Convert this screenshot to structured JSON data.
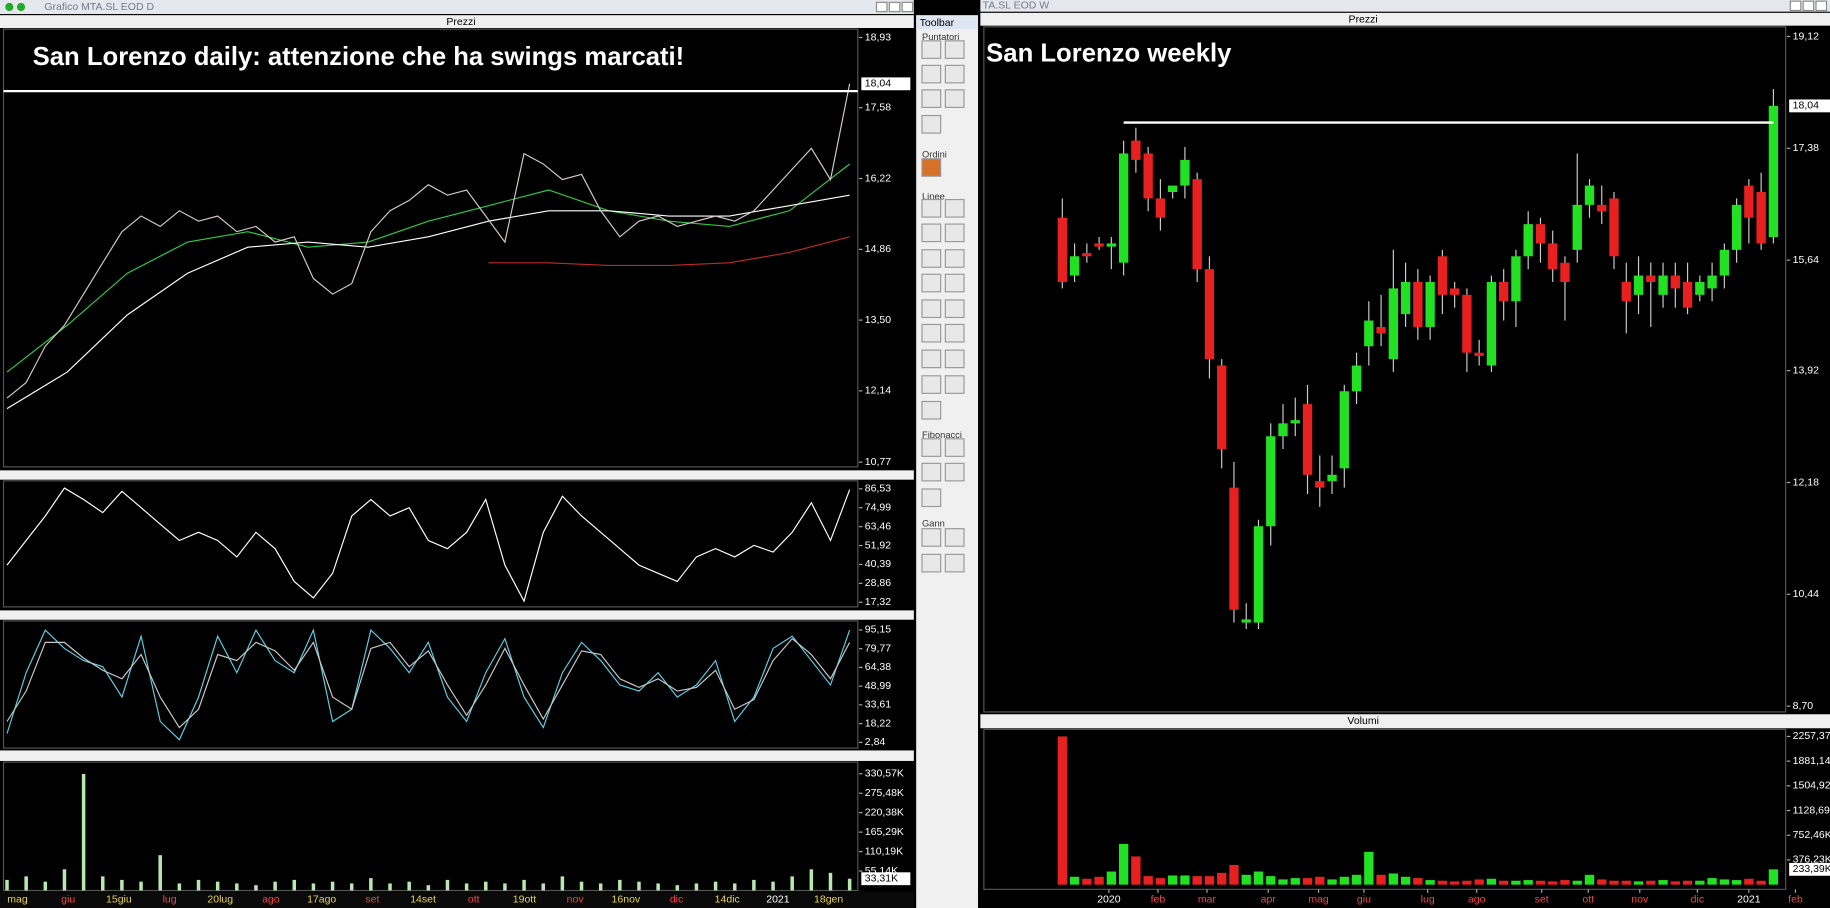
{
  "left_window": {
    "window_title": "Grafico MTA.SL EOD D",
    "panel_title": "Prezzi",
    "annotation": "San Lorenzo daily: attenzione che ha swings marcati!",
    "x_labels": [
      "mag",
      "giu",
      "15giu",
      "lug",
      "20lug",
      "ago",
      "17ago",
      "set",
      "14set",
      "ott",
      "19ott",
      "nov",
      "16nov",
      "dic",
      "14dic",
      "2021",
      "18gen"
    ],
    "x_label_colors": [
      "#e8d44d",
      "#ff4040",
      "#e8d44d",
      "#ff4040",
      "#e8d44d",
      "#ff4040",
      "#e8d44d",
      "#ff4040",
      "#e8d44d",
      "#ff4040",
      "#e8d44d",
      "#ff4040",
      "#e8d44d",
      "#ff4040",
      "#e8d44d",
      "#ffffff",
      "#e8d44d"
    ],
    "price": {
      "ylim": [
        10.68,
        19.09
      ],
      "yticks": [
        {
          "value": 18.93,
          "label": "18,93"
        },
        {
          "value": 17.58,
          "label": "17,58"
        },
        {
          "value": 16.22,
          "label": "16,22"
        },
        {
          "value": 14.86,
          "label": "14,86"
        },
        {
          "value": 13.5,
          "label": "13,50"
        },
        {
          "value": 12.14,
          "label": "12,14"
        },
        {
          "value": 10.77,
          "label": "10,77"
        }
      ],
      "current": {
        "value": 18.04,
        "label": "18,04"
      },
      "hline": 17.9,
      "close_color": "#d8c8c8",
      "closes": [
        12.0,
        12.3,
        13.0,
        13.4,
        14.0,
        14.6,
        15.2,
        15.5,
        15.3,
        15.6,
        15.4,
        15.5,
        15.2,
        15.3,
        15.0,
        15.1,
        14.3,
        14.0,
        14.2,
        15.2,
        15.6,
        15.8,
        16.1,
        15.9,
        16.0,
        15.5,
        15.0,
        16.7,
        16.5,
        16.2,
        16.3,
        15.6,
        15.1,
        15.4,
        15.5,
        15.3,
        15.4,
        15.5,
        15.4,
        15.6,
        16.0,
        16.4,
        16.8,
        16.2,
        18.04
      ],
      "averages": [
        {
          "color": "#2ecc40",
          "values": [
            12.5,
            13.4,
            14.4,
            15.0,
            15.2,
            14.9,
            15.0,
            15.4,
            15.7,
            16.0,
            15.6,
            15.4,
            15.3,
            15.6,
            16.5
          ]
        },
        {
          "color": "#ffffff",
          "values": [
            11.8,
            12.5,
            13.6,
            14.4,
            14.9,
            15.0,
            14.9,
            15.1,
            15.4,
            15.6,
            15.6,
            15.5,
            15.5,
            15.7,
            15.9
          ]
        },
        {
          "color": "#c0282a",
          "values": [
            null,
            null,
            null,
            null,
            null,
            null,
            null,
            null,
            14.6,
            14.6,
            14.55,
            14.55,
            14.6,
            14.8,
            15.1
          ]
        }
      ]
    },
    "rsi": {
      "ylim": [
        14.5,
        91.4
      ],
      "yticks": [
        {
          "value": 86.53,
          "label": "86,53"
        },
        {
          "value": 74.99,
          "label": "74,99"
        },
        {
          "value": 63.46,
          "label": "63,46"
        },
        {
          "value": 51.92,
          "label": "51,92"
        },
        {
          "value": 40.39,
          "label": "40,39"
        },
        {
          "value": 28.86,
          "label": "28,86"
        },
        {
          "value": 17.32,
          "label": "17,32"
        }
      ],
      "color": "#ffffff",
      "values": [
        40,
        55,
        70,
        87,
        80,
        72,
        85,
        75,
        65,
        55,
        60,
        55,
        45,
        60,
        50,
        30,
        20,
        35,
        70,
        80,
        70,
        75,
        55,
        50,
        60,
        80,
        40,
        18,
        60,
        82,
        70,
        60,
        50,
        40,
        35,
        30,
        45,
        50,
        45,
        52,
        48,
        60,
        78,
        55,
        86
      ]
    },
    "stochastic": {
      "ylim": [
        -1.9,
        102.6
      ],
      "yticks": [
        {
          "value": 95.15,
          "label": "95,15"
        },
        {
          "value": 79.77,
          "label": "79,77"
        },
        {
          "value": 64.38,
          "label": "64,38"
        },
        {
          "value": 48.99,
          "label": "48,99"
        },
        {
          "value": 33.61,
          "label": "33,61"
        },
        {
          "value": 18.22,
          "label": "18,22"
        },
        {
          "value": 2.84,
          "label": "2,84"
        }
      ],
      "series": [
        {
          "color": "#5ad0e8",
          "values": [
            10,
            60,
            95,
            80,
            70,
            65,
            40,
            90,
            20,
            5,
            40,
            90,
            60,
            95,
            70,
            60,
            95,
            20,
            30,
            95,
            80,
            60,
            85,
            40,
            20,
            60,
            88,
            40,
            15,
            60,
            85,
            70,
            50,
            45,
            60,
            40,
            50,
            70,
            20,
            40,
            80,
            90,
            70,
            50,
            95
          ]
        },
        {
          "color": "#c8c8c8",
          "values": [
            20,
            45,
            85,
            85,
            72,
            62,
            55,
            75,
            40,
            15,
            30,
            75,
            70,
            85,
            78,
            62,
            85,
            40,
            30,
            80,
            85,
            65,
            78,
            50,
            25,
            50,
            80,
            50,
            22,
            50,
            78,
            75,
            55,
            48,
            55,
            45,
            48,
            62,
            30,
            38,
            70,
            88,
            75,
            55,
            85
          ]
        }
      ]
    },
    "volume": {
      "ylim": [
        0,
        363.6
      ],
      "yticks": [
        {
          "value": 330.57,
          "label": "330,57K"
        },
        {
          "value": 275.48,
          "label": "275,48K"
        },
        {
          "value": 220.38,
          "label": "220,38K"
        },
        {
          "value": 165.29,
          "label": "165,29K"
        },
        {
          "value": 110.19,
          "label": "110,19K"
        },
        {
          "value": 55.14,
          "label": "55,14K"
        }
      ],
      "current": {
        "value": 33.31,
        "label": "33,31K"
      },
      "color": "#b8e8b0",
      "values": [
        30,
        40,
        25,
        60,
        330,
        40,
        30,
        25,
        100,
        20,
        30,
        25,
        20,
        15,
        25,
        30,
        20,
        25,
        20,
        35,
        20,
        25,
        15,
        30,
        20,
        25,
        20,
        30,
        20,
        40,
        25,
        20,
        30,
        25,
        20,
        15,
        20,
        25,
        20,
        30,
        25,
        40,
        60,
        50,
        33.31
      ]
    }
  },
  "toolbar": {
    "title": "Toolbar",
    "sections": [
      "Puntatori",
      "Ordini",
      "Linee",
      "Fibonacci",
      "Gann"
    ]
  },
  "right_window": {
    "window_title": "TA.SL EOD W",
    "panel_title": "Prezzi",
    "volume_title": "Volumi",
    "annotation": "San Lorenzo weekly",
    "xlim": [
      -6.4,
      59
    ],
    "xticks": [
      {
        "value": 3.8,
        "label": "2020"
      },
      {
        "value": 7.8,
        "label": "feb"
      },
      {
        "value": 11.8,
        "label": "mar"
      },
      {
        "value": 16.8,
        "label": "apr"
      },
      {
        "value": 20.9,
        "label": "mag"
      },
      {
        "value": 24.6,
        "label": "giu"
      },
      {
        "value": 29.8,
        "label": "lug"
      },
      {
        "value": 33.8,
        "label": "ago"
      },
      {
        "value": 39.1,
        "label": "set"
      },
      {
        "value": 42.9,
        "label": "ott"
      },
      {
        "value": 47.1,
        "label": "nov"
      },
      {
        "value": 51.8,
        "label": "dic"
      },
      {
        "value": 56,
        "label": "2021"
      },
      {
        "value": 59.8,
        "label": "feb"
      }
    ],
    "up_color": "#22e022",
    "down_color": "#e82020",
    "price": {
      "ylim": [
        8.61,
        19.27
      ],
      "yticks": [
        {
          "value": 19.12,
          "label": "19,12"
        },
        {
          "value": 17.38,
          "label": "17,38"
        },
        {
          "value": 15.64,
          "label": "15,64"
        },
        {
          "value": 13.92,
          "label": "13,92"
        },
        {
          "value": 12.18,
          "label": "12,18"
        },
        {
          "value": 10.44,
          "label": "10,44"
        },
        {
          "value": 8.7,
          "label": "8,70"
        }
      ],
      "current": {
        "value": 18.04,
        "label": "18,04"
      },
      "hline": {
        "value": 17.78,
        "from": 5
      },
      "candles": [
        [
          16.3,
          16.6,
          15.2,
          15.3
        ],
        [
          15.4,
          15.9,
          15.3,
          15.7
        ],
        [
          15.75,
          15.9,
          15.6,
          15.7
        ],
        [
          15.9,
          16.0,
          15.8,
          15.85
        ],
        [
          15.85,
          16.0,
          15.5,
          15.9
        ],
        [
          15.6,
          17.5,
          15.4,
          17.3
        ],
        [
          17.5,
          17.7,
          17.0,
          17.2
        ],
        [
          17.3,
          17.4,
          16.4,
          16.6
        ],
        [
          16.6,
          16.9,
          16.1,
          16.3
        ],
        [
          16.7,
          16.8,
          16.6,
          16.8
        ],
        [
          16.8,
          17.4,
          16.6,
          17.2
        ],
        [
          16.9,
          17.0,
          15.3,
          15.5
        ],
        [
          15.5,
          15.7,
          13.8,
          14.1
        ],
        [
          14.0,
          14.1,
          12.4,
          12.7
        ],
        [
          12.1,
          12.5,
          10.0,
          10.2
        ],
        [
          10.0,
          10.3,
          9.9,
          10.05
        ],
        [
          10.0,
          11.6,
          9.9,
          11.5
        ],
        [
          11.5,
          13.1,
          11.2,
          12.9
        ],
        [
          12.9,
          13.4,
          12.7,
          13.1
        ],
        [
          13.1,
          13.5,
          12.9,
          13.15
        ],
        [
          13.4,
          13.7,
          12.0,
          12.3
        ],
        [
          12.2,
          12.6,
          11.8,
          12.1
        ],
        [
          12.2,
          12.6,
          12.0,
          12.3
        ],
        [
          12.4,
          13.7,
          12.1,
          13.6
        ],
        [
          13.6,
          14.2,
          13.4,
          14.0
        ],
        [
          14.3,
          15.0,
          14.0,
          14.7
        ],
        [
          14.6,
          15.1,
          14.3,
          14.5
        ],
        [
          14.1,
          15.8,
          13.9,
          15.2
        ],
        [
          14.8,
          15.6,
          14.6,
          15.3
        ],
        [
          15.3,
          15.5,
          14.4,
          14.6
        ],
        [
          14.6,
          15.4,
          14.4,
          15.3
        ],
        [
          15.7,
          15.8,
          14.8,
          15.1
        ],
        [
          15.2,
          15.3,
          14.9,
          15.1
        ],
        [
          15.1,
          15.2,
          13.9,
          14.2
        ],
        [
          14.2,
          14.4,
          14.0,
          14.15
        ],
        [
          14.0,
          15.4,
          13.9,
          15.3
        ],
        [
          15.3,
          15.5,
          14.7,
          15.0
        ],
        [
          15.0,
          15.8,
          14.6,
          15.7
        ],
        [
          15.7,
          16.4,
          15.5,
          16.2
        ],
        [
          16.2,
          16.3,
          15.6,
          15.9
        ],
        [
          15.9,
          16.1,
          15.3,
          15.5
        ],
        [
          15.6,
          15.7,
          14.7,
          15.3
        ],
        [
          15.8,
          17.3,
          15.6,
          16.5
        ],
        [
          16.5,
          16.9,
          16.3,
          16.8
        ],
        [
          16.5,
          16.8,
          16.2,
          16.4
        ],
        [
          16.6,
          16.7,
          15.5,
          15.7
        ],
        [
          15.3,
          15.6,
          14.5,
          15.0
        ],
        [
          15.1,
          15.7,
          14.8,
          15.4
        ],
        [
          15.4,
          15.6,
          14.6,
          15.3
        ],
        [
          15.1,
          15.6,
          14.9,
          15.4
        ],
        [
          15.4,
          15.6,
          14.9,
          15.2
        ],
        [
          15.3,
          15.6,
          14.8,
          14.9
        ],
        [
          15.1,
          15.4,
          15.0,
          15.3
        ],
        [
          15.2,
          15.6,
          15.0,
          15.4
        ],
        [
          15.4,
          15.9,
          15.2,
          15.8
        ],
        [
          15.8,
          16.6,
          15.6,
          16.5
        ],
        [
          16.8,
          16.9,
          15.9,
          16.3
        ],
        [
          16.7,
          17.0,
          15.8,
          15.9
        ],
        [
          16.0,
          18.3,
          15.9,
          18.04
        ]
      ]
    },
    "volume": {
      "ylim": [
        0,
        2364
      ],
      "yticks": [
        {
          "value": 2257.37,
          "label": "2257,37"
        },
        {
          "value": 1881.14,
          "label": "1881,14"
        },
        {
          "value": 1504.92,
          "label": "1504,92"
        },
        {
          "value": 1128.69,
          "label": "1128,69"
        },
        {
          "value": 752.46,
          "label": "752,46K"
        },
        {
          "value": 376.23,
          "label": "376,23K"
        }
      ],
      "current": {
        "value": 233.39,
        "label": "233,39K"
      },
      "values": [
        2257.37,
        120,
        90,
        120,
        200,
        620,
        430,
        130,
        100,
        140,
        140,
        130,
        130,
        180,
        300,
        150,
        200,
        130,
        80,
        100,
        100,
        120,
        80,
        120,
        150,
        500,
        150,
        170,
        120,
        100,
        70,
        60,
        50,
        60,
        80,
        90,
        60,
        60,
        70,
        60,
        50,
        70,
        60,
        150,
        80,
        60,
        60,
        50,
        60,
        70,
        50,
        60,
        60,
        100,
        80,
        70,
        90,
        60,
        233.39
      ]
    }
  }
}
